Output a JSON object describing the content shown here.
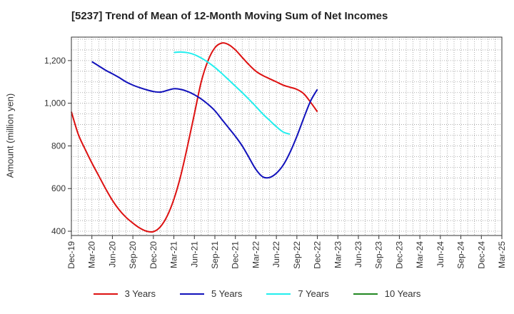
{
  "chart_data": {
    "type": "line",
    "title": "[5237]  Trend of Mean of 12-Month Moving Sum of Net Incomes",
    "ylabel": "Amount (million yen)",
    "xlabel": "",
    "ylim": [
      380,
      1310
    ],
    "y_ticks": [
      400,
      600,
      800,
      1000,
      1200
    ],
    "y_tick_labels": [
      "400",
      "600",
      "800",
      "1,000",
      "1,200"
    ],
    "x_tick_labels": [
      "Dec-19",
      "Mar-20",
      "Jun-20",
      "Sep-20",
      "Dec-20",
      "Mar-21",
      "Jun-21",
      "Sep-21",
      "Dec-21",
      "Mar-22",
      "Jun-22",
      "Sep-22",
      "Dec-22",
      "Mar-23",
      "Jun-23",
      "Sep-23",
      "Dec-23",
      "Mar-24",
      "Jun-24",
      "Sep-24",
      "Dec-24",
      "Mar-25"
    ],
    "grid": true,
    "legend_position": "bottom",
    "series": [
      {
        "name": "3 Years",
        "color": "#dd1111",
        "points": [
          [
            0,
            960
          ],
          [
            1,
            855
          ],
          [
            2,
            785
          ],
          [
            3,
            720
          ],
          [
            4,
            660
          ],
          [
            5,
            600
          ],
          [
            6,
            545
          ],
          [
            7,
            500
          ],
          [
            8,
            465
          ],
          [
            9,
            438
          ],
          [
            10,
            415
          ],
          [
            11,
            400
          ],
          [
            12,
            398
          ],
          [
            13,
            420
          ],
          [
            14,
            470
          ],
          [
            15,
            550
          ],
          [
            16,
            660
          ],
          [
            17,
            800
          ],
          [
            18,
            950
          ],
          [
            19,
            1100
          ],
          [
            20,
            1200
          ],
          [
            21,
            1260
          ],
          [
            22,
            1282
          ],
          [
            23,
            1275
          ],
          [
            24,
            1250
          ],
          [
            25,
            1215
          ],
          [
            26,
            1180
          ],
          [
            27,
            1150
          ],
          [
            28,
            1130
          ],
          [
            29,
            1115
          ],
          [
            30,
            1100
          ],
          [
            31,
            1085
          ],
          [
            32,
            1075
          ],
          [
            33,
            1065
          ],
          [
            34,
            1045
          ],
          [
            35,
            1005
          ],
          [
            36,
            960
          ]
        ]
      },
      {
        "name": "5 Years",
        "color": "#1111bb",
        "points": [
          [
            3,
            1195
          ],
          [
            4,
            1175
          ],
          [
            5,
            1155
          ],
          [
            6,
            1138
          ],
          [
            7,
            1120
          ],
          [
            8,
            1100
          ],
          [
            9,
            1085
          ],
          [
            10,
            1073
          ],
          [
            11,
            1063
          ],
          [
            12,
            1055
          ],
          [
            13,
            1052
          ],
          [
            14,
            1060
          ],
          [
            15,
            1068
          ],
          [
            16,
            1065
          ],
          [
            17,
            1055
          ],
          [
            18,
            1040
          ],
          [
            19,
            1020
          ],
          [
            20,
            995
          ],
          [
            21,
            965
          ],
          [
            22,
            925
          ],
          [
            23,
            885
          ],
          [
            24,
            845
          ],
          [
            25,
            800
          ],
          [
            26,
            745
          ],
          [
            27,
            690
          ],
          [
            28,
            655
          ],
          [
            29,
            652
          ],
          [
            30,
            672
          ],
          [
            31,
            710
          ],
          [
            32,
            770
          ],
          [
            33,
            845
          ],
          [
            34,
            930
          ],
          [
            35,
            1010
          ],
          [
            36,
            1065
          ]
        ]
      },
      {
        "name": "7 Years",
        "color": "#22eeee",
        "points": [
          [
            15,
            1238
          ],
          [
            16,
            1240
          ],
          [
            17,
            1237
          ],
          [
            18,
            1228
          ],
          [
            19,
            1212
          ],
          [
            20,
            1192
          ],
          [
            21,
            1168
          ],
          [
            22,
            1140
          ],
          [
            23,
            1110
          ],
          [
            24,
            1080
          ],
          [
            25,
            1050
          ],
          [
            26,
            1018
          ],
          [
            27,
            985
          ],
          [
            28,
            950
          ],
          [
            29,
            920
          ],
          [
            30,
            890
          ],
          [
            31,
            865
          ],
          [
            32,
            855
          ]
        ]
      },
      {
        "name": "10 Years",
        "color": "#228822",
        "points": []
      }
    ]
  }
}
